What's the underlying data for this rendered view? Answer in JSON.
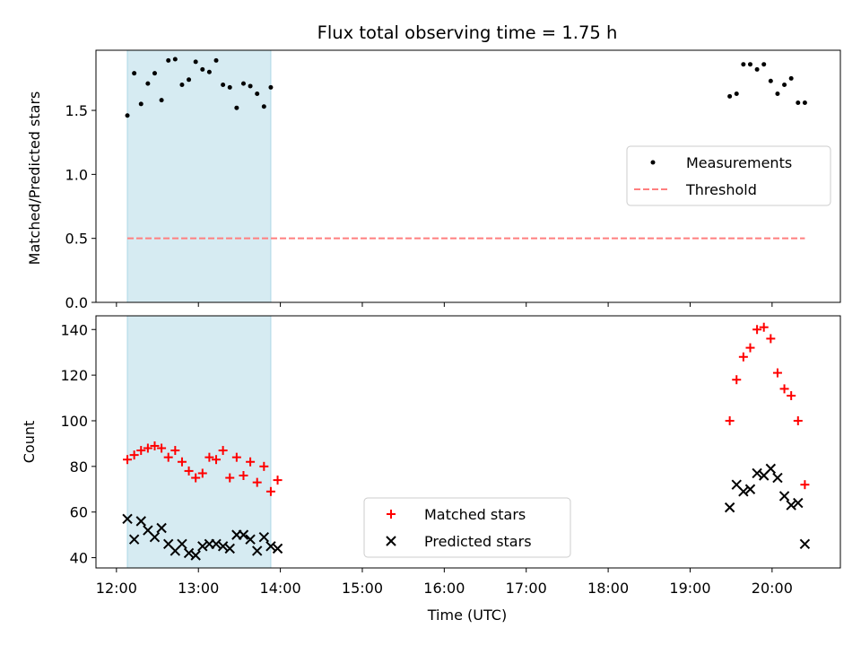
{
  "title": "Flux total observing time = 1.75 h",
  "colors": {
    "measurement": "#000000",
    "threshold": "#ff7f7f",
    "matched": "#ff0000",
    "predicted": "#000000",
    "highlight": "#add8e6"
  },
  "chart_data": [
    {
      "type": "scatter",
      "panel": "top",
      "xlabel": "",
      "ylabel": "Matched/Predicted stars",
      "ylim": [
        0,
        1.97
      ],
      "yticks": [
        0.0,
        0.5,
        1.0,
        1.5
      ],
      "ytick_labels": [
        "0.0",
        "0.5",
        "1.0",
        "1.5"
      ],
      "xlim": [
        "11:45",
        "20:50"
      ],
      "highlight_span": [
        "12:08",
        "13:53"
      ],
      "legend": {
        "placement": "center-right",
        "entries": [
          "Measurements",
          "Threshold"
        ]
      },
      "series": [
        {
          "name": "Measurements",
          "marker": "dot",
          "points": [
            [
              "12:08",
              1.46
            ],
            [
              "12:13",
              1.79
            ],
            [
              "12:18",
              1.55
            ],
            [
              "12:23",
              1.71
            ],
            [
              "12:28",
              1.79
            ],
            [
              "12:33",
              1.58
            ],
            [
              "12:38",
              1.89
            ],
            [
              "12:43",
              1.9
            ],
            [
              "12:48",
              1.7
            ],
            [
              "12:53",
              1.74
            ],
            [
              "12:58",
              1.88
            ],
            [
              "13:03",
              1.82
            ],
            [
              "13:08",
              1.8
            ],
            [
              "13:13",
              1.89
            ],
            [
              "13:18",
              1.7
            ],
            [
              "13:23",
              1.68
            ],
            [
              "13:28",
              1.52
            ],
            [
              "13:33",
              1.71
            ],
            [
              "13:38",
              1.69
            ],
            [
              "13:43",
              1.63
            ],
            [
              "13:48",
              1.53
            ],
            [
              "13:53",
              1.68
            ],
            [
              "19:29",
              1.61
            ],
            [
              "19:34",
              1.63
            ],
            [
              "19:39",
              1.86
            ],
            [
              "19:44",
              1.86
            ],
            [
              "19:49",
              1.82
            ],
            [
              "19:54",
              1.86
            ],
            [
              "19:59",
              1.73
            ],
            [
              "20:04",
              1.63
            ],
            [
              "20:09",
              1.7
            ],
            [
              "20:14",
              1.75
            ],
            [
              "20:19",
              1.56
            ],
            [
              "20:24",
              1.56
            ]
          ]
        },
        {
          "name": "Threshold",
          "style": "dashed",
          "points": [
            [
              "12:08",
              0.5
            ],
            [
              "20:24",
              0.5
            ]
          ]
        }
      ]
    },
    {
      "type": "scatter",
      "panel": "bottom",
      "xlabel": "Time (UTC)",
      "ylabel": "Count",
      "ylim": [
        35.5,
        146
      ],
      "yticks": [
        40,
        60,
        80,
        100,
        120,
        140
      ],
      "ytick_labels": [
        "40",
        "60",
        "80",
        "100",
        "120",
        "140"
      ],
      "xlim": [
        "11:45",
        "20:50"
      ],
      "xticks": [
        "12:00",
        "13:00",
        "14:00",
        "15:00",
        "16:00",
        "17:00",
        "18:00",
        "19:00",
        "20:00"
      ],
      "xtick_labels": [
        "12:00",
        "13:00",
        "14:00",
        "15:00",
        "16:00",
        "17:00",
        "18:00",
        "19:00",
        "20:00"
      ],
      "highlight_span": [
        "12:08",
        "13:53"
      ],
      "legend": {
        "placement": "lower-center",
        "entries": [
          "Matched stars",
          "Predicted stars"
        ]
      },
      "series": [
        {
          "name": "Matched stars",
          "marker": "plus",
          "points": [
            [
              "12:08",
              83
            ],
            [
              "12:13",
              85
            ],
            [
              "12:18",
              87
            ],
            [
              "12:23",
              88
            ],
            [
              "12:28",
              89
            ],
            [
              "12:33",
              88
            ],
            [
              "12:38",
              84
            ],
            [
              "12:43",
              87
            ],
            [
              "12:48",
              82
            ],
            [
              "12:53",
              78
            ],
            [
              "12:58",
              75
            ],
            [
              "13:03",
              77
            ],
            [
              "13:08",
              84
            ],
            [
              "13:13",
              83
            ],
            [
              "13:18",
              87
            ],
            [
              "13:23",
              75
            ],
            [
              "13:28",
              84
            ],
            [
              "13:33",
              76
            ],
            [
              "13:38",
              82
            ],
            [
              "13:43",
              73
            ],
            [
              "13:48",
              80
            ],
            [
              "13:53",
              69
            ],
            [
              "13:58",
              74
            ],
            [
              "19:29",
              100
            ],
            [
              "19:34",
              118
            ],
            [
              "19:39",
              128
            ],
            [
              "19:44",
              132
            ],
            [
              "19:49",
              140
            ],
            [
              "19:54",
              141
            ],
            [
              "19:59",
              136
            ],
            [
              "20:04",
              121
            ],
            [
              "20:09",
              114
            ],
            [
              "20:14",
              111
            ],
            [
              "20:19",
              100
            ],
            [
              "20:24",
              72
            ]
          ]
        },
        {
          "name": "Predicted stars",
          "marker": "x",
          "points": [
            [
              "12:08",
              57
            ],
            [
              "12:13",
              48
            ],
            [
              "12:18",
              56
            ],
            [
              "12:23",
              52
            ],
            [
              "12:28",
              49
            ],
            [
              "12:33",
              53
            ],
            [
              "12:38",
              46
            ],
            [
              "12:43",
              43
            ],
            [
              "12:48",
              46
            ],
            [
              "12:53",
              42
            ],
            [
              "12:58",
              41
            ],
            [
              "13:03",
              45
            ],
            [
              "13:08",
              46
            ],
            [
              "13:13",
              46
            ],
            [
              "13:18",
              45
            ],
            [
              "13:23",
              44
            ],
            [
              "13:28",
              50
            ],
            [
              "13:33",
              50
            ],
            [
              "13:38",
              48
            ],
            [
              "13:43",
              43
            ],
            [
              "13:48",
              49
            ],
            [
              "13:53",
              45
            ],
            [
              "13:58",
              44
            ],
            [
              "19:29",
              62
            ],
            [
              "19:34",
              72
            ],
            [
              "19:39",
              69
            ],
            [
              "19:44",
              70
            ],
            [
              "19:49",
              77
            ],
            [
              "19:54",
              76
            ],
            [
              "19:59",
              79
            ],
            [
              "20:04",
              75
            ],
            [
              "20:09",
              67
            ],
            [
              "20:14",
              63
            ],
            [
              "20:19",
              64
            ],
            [
              "20:24",
              46
            ]
          ]
        }
      ]
    }
  ]
}
